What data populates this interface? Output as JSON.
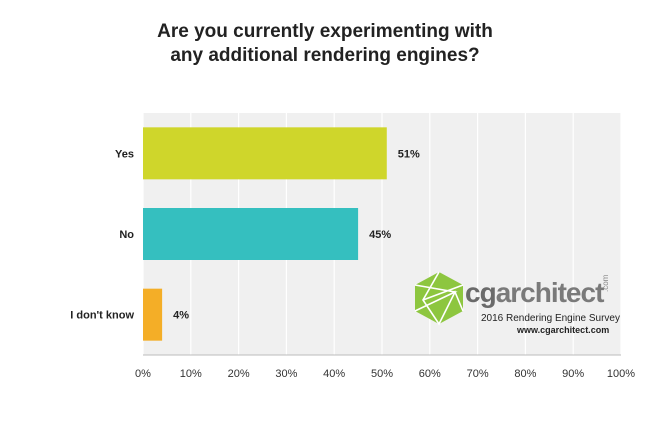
{
  "title_lines": [
    "Are you currently experimenting with",
    "any additional rendering engines?"
  ],
  "chart_data": {
    "type": "bar",
    "orientation": "horizontal",
    "categories": [
      "Yes",
      "No",
      "I don't know"
    ],
    "values": [
      51,
      45,
      4
    ],
    "value_labels": [
      "51%",
      "45%",
      "4%"
    ],
    "colors": [
      "#cfd62b",
      "#35bfbf",
      "#f4ae27"
    ],
    "xlim": [
      0,
      100
    ],
    "xticks": [
      "0%",
      "10%",
      "20%",
      "30%",
      "40%",
      "50%",
      "60%",
      "70%",
      "80%",
      "90%",
      "100%"
    ],
    "grid": true,
    "background": "#f0f0f0"
  },
  "watermark": {
    "logo_cg": "cg",
    "logo_rest": "architect",
    "logo_suffix": ".com",
    "subtitle": "2016 Rendering Engine Survey",
    "url": "www.cgarchitect.com"
  }
}
